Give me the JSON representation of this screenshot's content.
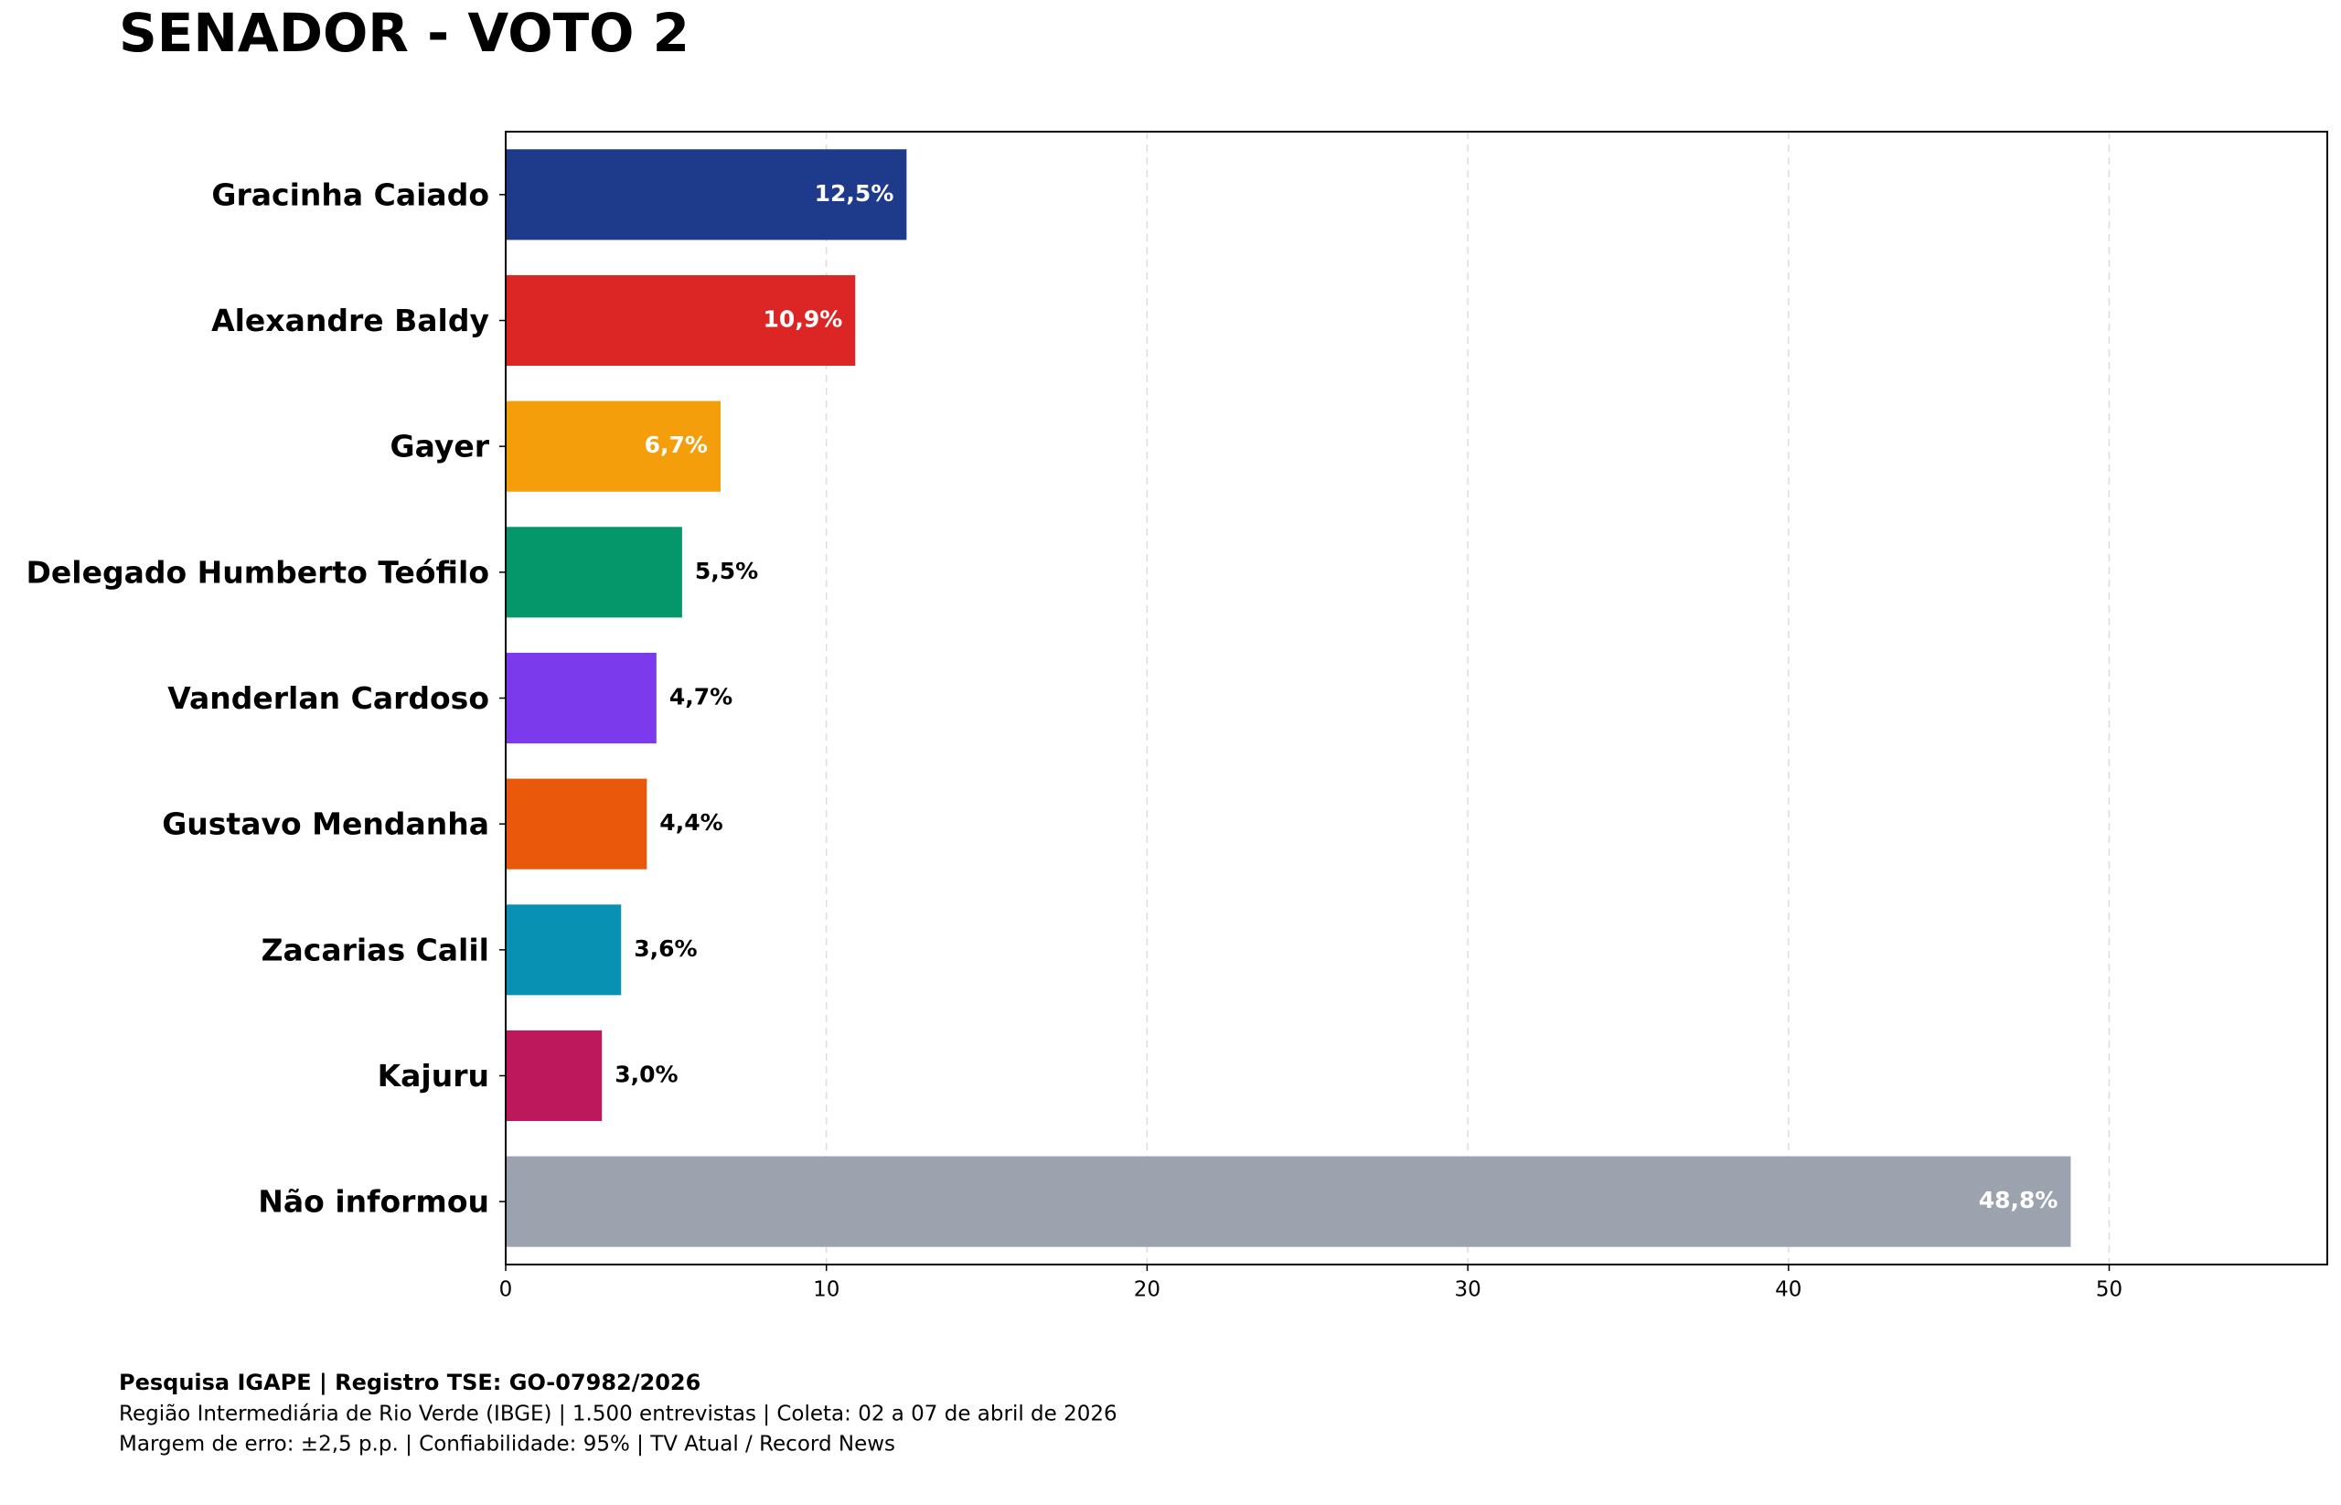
{
  "chart_data": {
    "type": "barh",
    "title": "SENADOR - VOTO 2",
    "categories": [
      "Gracinha Caiado",
      "Alexandre Baldy",
      "Gayer",
      "Delegado Humberto Teófilo",
      "Vanderlan Cardoso",
      "Gustavo Mendanha",
      "Zacarias Calil",
      "Kajuru",
      "Não informou"
    ],
    "values": [
      12.5,
      10.9,
      6.7,
      5.5,
      4.7,
      4.4,
      3.6,
      3.0,
      48.8
    ],
    "value_labels": [
      "12,5%",
      "10,9%",
      "6,7%",
      "5,5%",
      "4,7%",
      "4,4%",
      "3,6%",
      "3,0%",
      "48,8%"
    ],
    "colors": [
      "#1e3a8a",
      "#dc2626",
      "#f59e0b",
      "#059669",
      "#7c3aed",
      "#ea580c",
      "#0891b2",
      "#be185d",
      "#9ca3af"
    ],
    "xlim": [
      0,
      56.8
    ],
    "xticks": [
      0,
      10,
      20,
      30,
      40,
      50
    ],
    "grid": true,
    "footer": [
      "Pesquisa IGAPE | Registro TSE: GO-07982/2026",
      "Região Intermediária de Rio Verde (IBGE) | 1.500 entrevistas | Coleta: 02 a 07 de abril de 2026",
      "Margem de erro: ±2,5 p.p. | Confiabilidade: 95% | TV Atual / Record News"
    ]
  }
}
